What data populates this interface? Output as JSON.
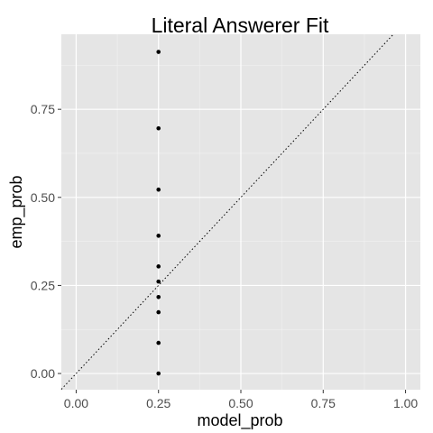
{
  "chart_data": {
    "type": "scatter",
    "title": "Literal Answerer Fit",
    "xlabel": "model_prob",
    "ylabel": "emp_prob",
    "xlim": [
      -0.045,
      1.045
    ],
    "ylim": [
      -0.046,
      0.963
    ],
    "x_ticks": [
      0.0,
      0.25,
      0.5,
      0.75,
      1.0
    ],
    "x_tick_labels": [
      "0.00",
      "0.25",
      "0.50",
      "0.75",
      "1.00"
    ],
    "y_ticks": [
      0.0,
      0.25,
      0.5,
      0.75
    ],
    "y_tick_labels": [
      "0.00",
      "0.25",
      "0.50",
      "0.75"
    ],
    "grid": true,
    "reference_line": {
      "type": "identity",
      "style": "dotted",
      "color": "#000000"
    },
    "points": [
      {
        "x": 0.25,
        "y": 0.913
      },
      {
        "x": 0.25,
        "y": 0.696
      },
      {
        "x": 0.25,
        "y": 0.522
      },
      {
        "x": 0.25,
        "y": 0.391
      },
      {
        "x": 0.25,
        "y": 0.304
      },
      {
        "x": 0.25,
        "y": 0.261
      },
      {
        "x": 0.25,
        "y": 0.217
      },
      {
        "x": 0.25,
        "y": 0.174
      },
      {
        "x": 0.25,
        "y": 0.087
      },
      {
        "x": 0.25,
        "y": 0.0
      }
    ],
    "colors": {
      "panel_background": "#e5e5e5",
      "major_grid": "#ffffff",
      "minor_grid": "#f2f2f2",
      "point": "#000000"
    }
  }
}
